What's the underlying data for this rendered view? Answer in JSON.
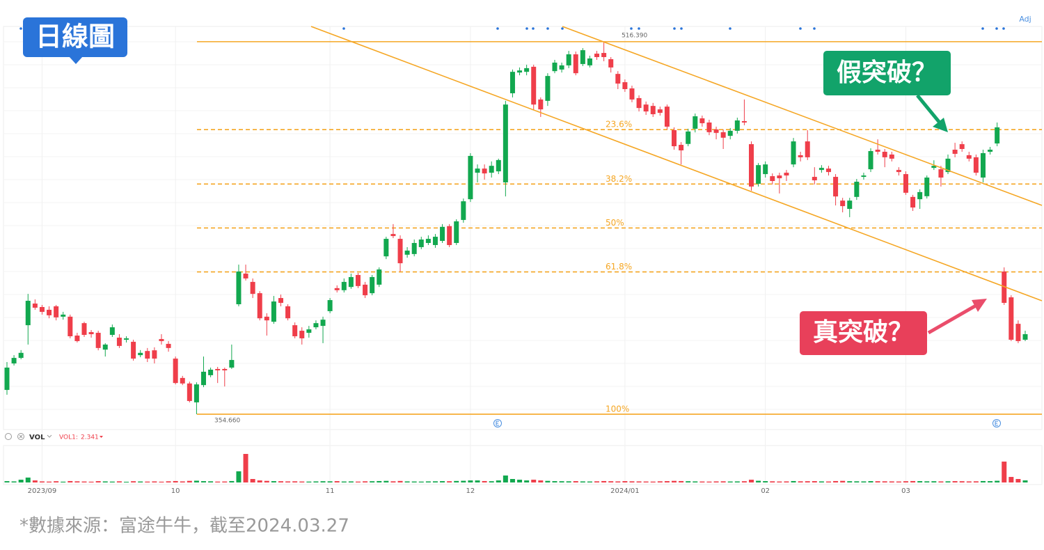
{
  "chart_data": {
    "type": "candlestick",
    "categories": [
      null,
      null,
      null,
      null,
      null,
      "2023/09",
      null,
      null,
      null,
      null,
      null,
      null,
      null,
      null,
      null,
      null,
      null,
      null,
      null,
      null,
      null,
      null,
      null,
      null,
      "10",
      null,
      null,
      null,
      null,
      null,
      null,
      null,
      null,
      null,
      null,
      null,
      null,
      null,
      null,
      null,
      null,
      null,
      null,
      null,
      null,
      null,
      "11",
      null,
      null,
      null,
      null,
      null,
      null,
      null,
      null,
      null,
      null,
      null,
      null,
      null,
      null,
      null,
      null,
      null,
      null,
      null,
      "12",
      null,
      null,
      null,
      null,
      null,
      null,
      null,
      null,
      null,
      null,
      null,
      null,
      null,
      null,
      null,
      null,
      null,
      null,
      null,
      null,
      null,
      "2024/01",
      null,
      null,
      null,
      null,
      null,
      null,
      null,
      null,
      null,
      null,
      null,
      null,
      null,
      null,
      null,
      null,
      null,
      null,
      null,
      "02",
      null,
      null,
      null,
      null,
      null,
      null,
      null,
      null,
      null,
      null,
      null,
      null,
      null,
      null,
      null,
      null,
      null,
      null,
      null,
      "03",
      null,
      null,
      null,
      null,
      null,
      null,
      null,
      null,
      null,
      null,
      null,
      null,
      null,
      null,
      null,
      null,
      null
    ],
    "open": [
      365.2,
      376.7,
      379.1,
      393.3,
      402.7,
      401.2,
      400.0,
      401.5,
      397.0,
      397.0,
      388.8,
      394.2,
      390.3,
      390.0,
      382.7,
      389.1,
      387.9,
      387.0,
      386.1,
      380.3,
      382.1,
      382.4,
      387.3,
      385.2,
      378.8,
      370.4,
      368.0,
      359.8,
      367.3,
      371.6,
      374.3,
      374.3,
      374.9,
      402.4,
      415.7,
      412.1,
      407.2,
      397.0,
      394.8,
      405.1,
      401.5,
      393.3,
      390.9,
      390.0,
      392.4,
      393.0,
      399.4,
      409.4,
      408.5,
      409.9,
      415.1,
      410.9,
      407.2,
      410.9,
      423.2,
      432.9,
      430.8,
      423.9,
      424.2,
      427.2,
      429.0,
      428.1,
      429.9,
      436.3,
      429.0,
      439.0,
      448.0,
      459.5,
      461.3,
      459.5,
      460.1,
      455.3,
      494.0,
      503.0,
      503.3,
      505.5,
      491.3,
      490.7,
      503.6,
      504.3,
      506.1,
      510.9,
      506.7,
      506.1,
      511.2,
      511.5,
      508.8,
      502.4,
      498.8,
      496.1,
      491.9,
      489.1,
      488.5,
      487.0,
      488.2,
      478.0,
      471.6,
      472.0,
      478.6,
      483.1,
      481.3,
      478.3,
      477.1,
      475.5,
      477.7,
      481.9,
      471.9,
      454.7,
      458.9,
      458.0,
      458.3,
      459.5,
      463.1,
      467.1,
      473.1,
      457.7,
      460.7,
      461.3,
      457.7,
      447.4,
      443.8,
      449.0,
      457.7,
      461.0,
      469.5,
      468.6,
      467.4,
      460.7,
      458.9,
      449.0,
      448.0,
      449.3,
      461.6,
      461.0,
      459.8,
      469.5,
      471.9,
      467.1,
      466.2,
      457.4,
      468.6,
      472.2,
      416.6,
      405.4,
      393.9,
      387.0
    ],
    "high": [
      377.3,
      380.3,
      382.5,
      406.9,
      404.5,
      402.1,
      401.5,
      402.1,
      399.1,
      397.9,
      390.0,
      394.8,
      391.2,
      390.9,
      385.5,
      393.6,
      389.4,
      388.5,
      387.0,
      382.5,
      383.4,
      383.7,
      389.4,
      386.4,
      379.7,
      371.3,
      368.8,
      368.5,
      379.7,
      374.9,
      375.2,
      374.9,
      384.9,
      419.6,
      419.6,
      413.6,
      408.1,
      398.5,
      406.0,
      406.6,
      402.4,
      394.5,
      392.4,
      393.0,
      395.4,
      397.0,
      405.1,
      410.6,
      413.6,
      415.7,
      416.0,
      412.1,
      415.1,
      418.4,
      431.7,
      437.2,
      432.3,
      427.2,
      430.5,
      431.7,
      432.3,
      432.9,
      437.2,
      437.2,
      439.3,
      448.3,
      468.0,
      463.1,
      463.1,
      464.4,
      465.6,
      490.7,
      504.3,
      505.2,
      506.4,
      506.4,
      492.2,
      502.7,
      508.5,
      507.3,
      512.4,
      512.1,
      513.6,
      510.3,
      512.4,
      516.39,
      509.7,
      503.6,
      500.0,
      497.3,
      493.1,
      490.4,
      489.8,
      488.2,
      489.1,
      479.2,
      472.8,
      478.6,
      485.2,
      484.3,
      482.5,
      479.5,
      478.3,
      478.9,
      483.4,
      491.3,
      473.1,
      463.7,
      464.4,
      459.2,
      459.5,
      460.7,
      474.6,
      468.6,
      478.0,
      461.9,
      462.8,
      462.5,
      458.9,
      448.6,
      448.6,
      456.8,
      459.5,
      470.1,
      474.0,
      469.8,
      468.6,
      461.9,
      460.1,
      449.9,
      452.3,
      458.3,
      464.9,
      462.5,
      467.4,
      472.5,
      473.1,
      468.6,
      467.4,
      469.5,
      470.7,
      481.3,
      418.4,
      406.3,
      395.4,
      390.9
    ],
    "low": [
      363.1,
      375.8,
      378.5,
      384.9,
      400.0,
      397.9,
      396.3,
      395.4,
      395.7,
      387.6,
      385.8,
      388.2,
      387.9,
      382.4,
      379.7,
      388.2,
      383.4,
      385.8,
      377.9,
      379.4,
      377.3,
      376.7,
      384.9,
      381.8,
      367.6,
      367.3,
      359.8,
      354.66,
      366.4,
      370.7,
      368.2,
      366.7,
      374.3,
      401.5,
      412.7,
      405.1,
      395.4,
      388.8,
      393.9,
      401.5,
      395.4,
      387.6,
      384.9,
      387.9,
      391.5,
      385.5,
      398.5,
      407.5,
      407.5,
      409.1,
      409.4,
      405.1,
      406.3,
      409.9,
      422.0,
      431.1,
      416.6,
      422.6,
      423.2,
      426.3,
      428.1,
      426.9,
      429.0,
      427.2,
      428.1,
      437.8,
      446.8,
      455.3,
      456.5,
      457.4,
      458.9,
      449.2,
      492.2,
      501.8,
      501.8,
      486.7,
      483.7,
      488.5,
      502.7,
      503.0,
      504.9,
      501.8,
      505.8,
      505.2,
      508.5,
      507.9,
      503.0,
      495.8,
      494.6,
      490.1,
      486.1,
      484.6,
      483.7,
      484.3,
      478.3,
      469.5,
      463.1,
      471.0,
      477.0,
      479.5,
      475.8,
      474.0,
      469.8,
      474.0,
      476.5,
      480.1,
      451.7,
      453.5,
      457.4,
      454.4,
      450.5,
      455.9,
      461.9,
      464.4,
      465.0,
      454.4,
      459.5,
      458.3,
      445.3,
      442.3,
      440.2,
      447.7,
      456.5,
      459.8,
      467.4,
      461.9,
      464.4,
      458.3,
      449.9,
      442.9,
      443.8,
      448.3,
      460.7,
      453.5,
      458.9,
      466.2,
      468.6,
      464.4,
      458.3,
      455.3,
      467.4,
      471.0,
      402.1,
      386.4,
      385.5,
      386.4
    ],
    "close": [
      374.9,
      379.1,
      381.3,
      403.9,
      400.9,
      399.1,
      397.6,
      396.7,
      397.9,
      388.5,
      386.4,
      389.1,
      389.4,
      383.4,
      384.9,
      392.4,
      384.3,
      387.6,
      378.8,
      381.3,
      378.8,
      378.8,
      386.4,
      383.4,
      368.2,
      368.0,
      360.4,
      367.6,
      373.1,
      374.0,
      373.7,
      373.7,
      378.2,
      416.6,
      413.6,
      406.9,
      396.3,
      395.4,
      403.6,
      403.0,
      396.3,
      388.5,
      387.6,
      391.5,
      394.2,
      395.7,
      404.2,
      408.5,
      412.1,
      414.2,
      410.3,
      406.3,
      414.2,
      417.5,
      430.8,
      432.0,
      420.2,
      425.7,
      429.0,
      430.5,
      430.8,
      431.7,
      436.0,
      428.1,
      438.4,
      447.1,
      466.8,
      461.3,
      459.2,
      462.5,
      465.0,
      489.1,
      503.3,
      503.9,
      504.9,
      489.1,
      487.0,
      501.5,
      507.3,
      506.1,
      510.9,
      502.7,
      512.7,
      509.1,
      509.7,
      509.7,
      505.2,
      498.2,
      495.8,
      491.3,
      487.6,
      486.1,
      484.9,
      485.5,
      479.5,
      471.0,
      469.2,
      477.4,
      484.0,
      481.0,
      477.1,
      476.8,
      474.7,
      477.7,
      482.2,
      481.3,
      453.5,
      462.8,
      463.1,
      455.9,
      457.1,
      458.3,
      473.1,
      466.2,
      466.2,
      456.2,
      461.6,
      459.8,
      449.2,
      445.0,
      447.4,
      455.6,
      458.3,
      468.9,
      468.6,
      466.2,
      465.6,
      459.8,
      450.8,
      444.4,
      451.1,
      457.4,
      462.5,
      457.4,
      465.6,
      467.7,
      469.8,
      465.6,
      459.5,
      468.0,
      469.5,
      479.2,
      403.0,
      387.0,
      386.4,
      389.4
    ],
    "volume": [
      1.5,
      1.2,
      3.1,
      5.5,
      2.3,
      1.2,
      1.0,
      1.4,
      0.9,
      1.6,
      1.3,
      1.1,
      0.9,
      1.5,
      1.2,
      1.0,
      1.3,
      0.8,
      1.4,
      1.1,
      1.0,
      1.2,
      0.9,
      1.3,
      1.6,
      1.2,
      1.8,
      2.0,
      1.5,
      1.3,
      1.0,
      1.1,
      1.6,
      12.5,
      32.0,
      3.9,
      2.3,
      1.8,
      1.5,
      1.4,
      1.2,
      1.3,
      1.1,
      1.0,
      1.2,
      1.4,
      1.3,
      1.5,
      1.1,
      1.2,
      1.0,
      1.3,
      1.4,
      1.6,
      1.8,
      1.3,
      1.7,
      1.2,
      1.1,
      1.0,
      1.2,
      1.3,
      1.5,
      1.4,
      1.7,
      1.9,
      2.3,
      2.3,
      1.6,
      1.4,
      2.3,
      7.8,
      3.9,
      3.1,
      2.3,
      3.1,
      2.3,
      1.8,
      1.5,
      1.4,
      1.3,
      1.5,
      1.2,
      1.1,
      1.3,
      1.6,
      1.4,
      1.2,
      1.5,
      1.3,
      1.2,
      1.1,
      1.0,
      1.3,
      1.5,
      1.8,
      1.6,
      1.4,
      1.2,
      1.1,
      1.0,
      1.2,
      1.3,
      1.1,
      1.2,
      1.4,
      3.1,
      1.9,
      1.5,
      1.3,
      1.1,
      1.2,
      1.6,
      1.3,
      1.4,
      1.5,
      1.2,
      1.1,
      1.6,
      1.8,
      1.4,
      1.3,
      1.2,
      1.5,
      1.4,
      1.3,
      1.2,
      1.1,
      1.4,
      1.6,
      1.5,
      1.3,
      1.4,
      1.2,
      1.3,
      1.5,
      1.4,
      1.2,
      1.3,
      1.6,
      1.5,
      1.9,
      23.4,
      6.2,
      3.9,
      2.341
    ],
    "ylim": [
      348.6,
      523.0
    ],
    "up_color": "#12a84f",
    "down_color": "#ef3e4a",
    "fib_color": "#f5a623",
    "fib": {
      "high": {
        "value": 516.39,
        "label": "516.390"
      },
      "low": {
        "value": 354.66,
        "label": "354.660"
      },
      "levels": [
        {
          "value": 23.6,
          "label": "23.6%"
        },
        {
          "value": 38.2,
          "label": "38.2%"
        },
        {
          "value": 50,
          "label": "50%"
        },
        {
          "value": 61.8,
          "label": "61.8%"
        },
        {
          "value": 100,
          "label": "100%"
        }
      ]
    },
    "volume_title": "VOL",
    "volume_readout_name": "VOL1:",
    "adj_label": "Adj"
  },
  "badge": "日線圖",
  "callouts": {
    "false_breakout": "假突破？",
    "true_breakout": "真突破？"
  },
  "footer": "*數據來源：富途牛牛，截至2024.03.27"
}
